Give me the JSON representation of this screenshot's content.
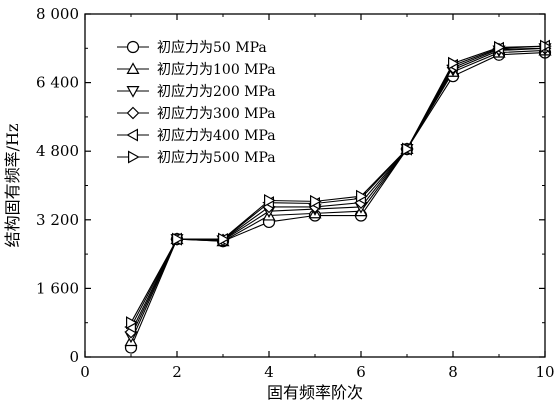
{
  "chart_data": {
    "type": "line",
    "title": "",
    "xlabel": "固有频率阶次",
    "ylabel": "结构固有频率/Hz",
    "xlim": [
      0,
      10
    ],
    "ylim": [
      0,
      8000
    ],
    "xticks": [
      0,
      2,
      4,
      6,
      8,
      10
    ],
    "xtick_labels": [
      "0",
      "2",
      "4",
      "6",
      "8",
      "10"
    ],
    "yticks": [
      0,
      1600,
      3200,
      4800,
      6400,
      8000
    ],
    "ytick_labels": [
      "0",
      "1 600",
      "3 200",
      "4 800",
      "6 400",
      "8 000"
    ],
    "grid": false,
    "legend_position": "top-left",
    "x": [
      1,
      2,
      3,
      4,
      5,
      6,
      7,
      8,
      9,
      10
    ],
    "series": [
      {
        "name": "初应力为50 MPa",
        "marker": "circle",
        "values": [
          220,
          2750,
          2700,
          3150,
          3300,
          3300,
          4850,
          6550,
          7050,
          7100
        ]
      },
      {
        "name": "初应力为100 MPa",
        "marker": "triangle-up",
        "values": [
          370,
          2750,
          2700,
          3300,
          3350,
          3400,
          4850,
          6650,
          7100,
          7150
        ]
      },
      {
        "name": "初应力为200 MPa",
        "marker": "triangle-down",
        "values": [
          480,
          2750,
          2720,
          3400,
          3450,
          3500,
          4850,
          6700,
          7150,
          7200
        ]
      },
      {
        "name": "初应力为300 MPa",
        "marker": "diamond",
        "values": [
          580,
          2750,
          2730,
          3500,
          3500,
          3600,
          4850,
          6750,
          7180,
          7200
        ]
      },
      {
        "name": "初应力为400 MPa",
        "marker": "triangle-left",
        "values": [
          700,
          2750,
          2740,
          3600,
          3580,
          3700,
          4850,
          6800,
          7200,
          7250
        ]
      },
      {
        "name": "初应力为500 MPa",
        "marker": "triangle-right",
        "values": [
          800,
          2750,
          2750,
          3650,
          3630,
          3750,
          4850,
          6850,
          7220,
          7250
        ]
      }
    ]
  }
}
